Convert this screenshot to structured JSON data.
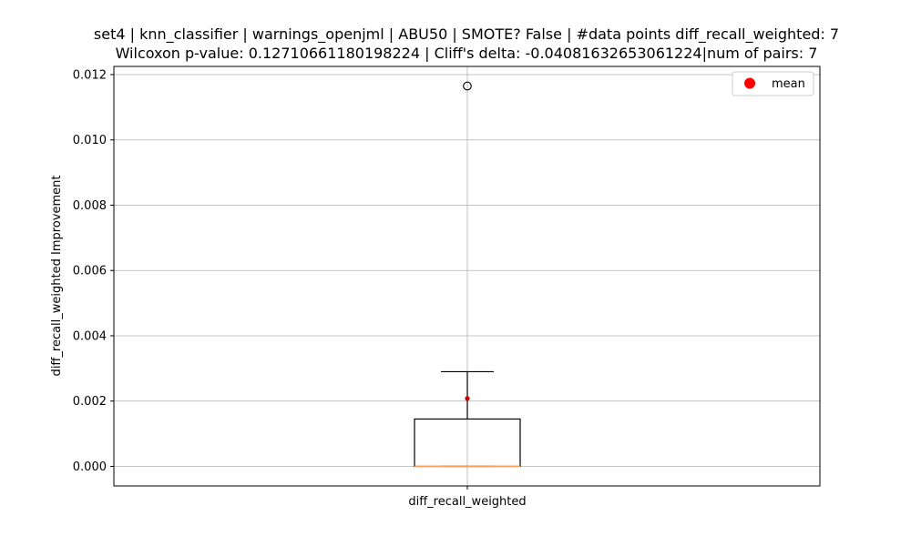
{
  "chart_data": {
    "type": "box",
    "title_lines": [
      "set4 | knn_classifier | warnings_openjml | ABU50 | SMOTE? False | #data points diff_recall_weighted: 7",
      "Wilcoxon p-value: 0.12710661180198224 | Cliff's delta: -0.04081632653061224|num of pairs: 7"
    ],
    "ylabel": "diff_recall_weighted Improvement",
    "categories": [
      "diff_recall_weighted"
    ],
    "ylim": [
      -0.0006,
      0.01225
    ],
    "yticks": [
      0.0,
      0.002,
      0.004,
      0.006,
      0.008,
      0.01,
      0.012
    ],
    "ytick_labels": [
      "0.000",
      "0.002",
      "0.004",
      "0.006",
      "0.008",
      "0.010",
      "0.012"
    ],
    "grid": true,
    "legend": {
      "position": "top-right",
      "entries": [
        "mean"
      ]
    },
    "box": {
      "whisker_low": 0.0,
      "q1": 0.0,
      "median": 0.0,
      "q3": 0.00145,
      "whisker_high": 0.0029,
      "mean": 0.00208,
      "outliers": [
        0.01165
      ]
    },
    "colors": {
      "box": "#000000",
      "median": "#f4a460",
      "mean": "#ff0000",
      "mean_marker_in_plot": "#cc0000",
      "grid": "#b0b0b0"
    }
  }
}
